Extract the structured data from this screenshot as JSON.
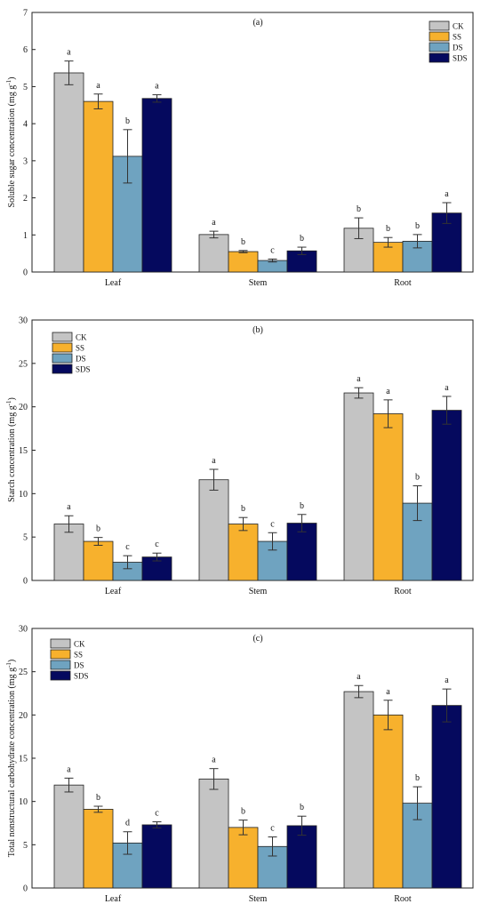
{
  "chart_data": [
    {
      "type": "bar",
      "panel": "(a)",
      "ylabel_parts": [
        "Soluble sugar concentration (mg g",
        "-1",
        ")"
      ],
      "ylim": [
        0,
        7
      ],
      "yticks": [
        0,
        1,
        2,
        3,
        4,
        5,
        6,
        7
      ],
      "categories": [
        "Leaf",
        "Stem",
        "Root"
      ],
      "legend_position": "top-right",
      "series": [
        {
          "name": "CK",
          "values": [
            5.37,
            1.01,
            1.18
          ],
          "errors": [
            0.32,
            0.09,
            0.28
          ],
          "letters": [
            "a",
            "a",
            "b"
          ]
        },
        {
          "name": "SS",
          "values": [
            4.6,
            0.55,
            0.8
          ],
          "errors": [
            0.2,
            0.03,
            0.13
          ],
          "letters": [
            "a",
            "b",
            "b"
          ]
        },
        {
          "name": "DS",
          "values": [
            3.12,
            0.31,
            0.83
          ],
          "errors": [
            0.72,
            0.04,
            0.18
          ],
          "letters": [
            "b",
            "c",
            "b"
          ]
        },
        {
          "name": "SDS",
          "values": [
            4.68,
            0.57,
            1.59
          ],
          "errors": [
            0.1,
            0.1,
            0.28
          ],
          "letters": [
            "a",
            "b",
            "a"
          ]
        }
      ]
    },
    {
      "type": "bar",
      "panel": "(b)",
      "ylabel_parts": [
        "Starch  concentration (mg g",
        "-1",
        ")"
      ],
      "ylim": [
        0,
        30
      ],
      "yticks": [
        0,
        5,
        10,
        15,
        20,
        25,
        30
      ],
      "categories": [
        "Leaf",
        "Stem",
        "Root"
      ],
      "legend_position": "top-left",
      "series": [
        {
          "name": "CK",
          "values": [
            6.5,
            11.6,
            21.6
          ],
          "errors": [
            0.95,
            1.2,
            0.6
          ],
          "letters": [
            "a",
            "a",
            "a"
          ]
        },
        {
          "name": "SS",
          "values": [
            4.5,
            6.5,
            19.2
          ],
          "errors": [
            0.45,
            0.75,
            1.6
          ],
          "letters": [
            "b",
            "b",
            "a"
          ]
        },
        {
          "name": "DS",
          "values": [
            2.1,
            4.5,
            8.9
          ],
          "errors": [
            0.75,
            1.0,
            2.0
          ],
          "letters": [
            "c",
            "c",
            "b"
          ]
        },
        {
          "name": "SDS",
          "values": [
            2.7,
            6.6,
            19.6
          ],
          "errors": [
            0.45,
            1.0,
            1.6
          ],
          "letters": [
            "c",
            "b",
            "a"
          ]
        }
      ]
    },
    {
      "type": "bar",
      "panel": "(c)",
      "ylabel_parts": [
        "Total nonstructural carbohydrate  concentration (mg g",
        "-1",
        ")"
      ],
      "ylim": [
        0,
        30
      ],
      "yticks": [
        0,
        5,
        10,
        15,
        20,
        25,
        30
      ],
      "categories": [
        "Leaf",
        "Stem",
        "Root"
      ],
      "legend_position": "top-left",
      "series": [
        {
          "name": "CK",
          "values": [
            11.9,
            12.6,
            22.7
          ],
          "errors": [
            0.8,
            1.2,
            0.7
          ],
          "letters": [
            "a",
            "a",
            "a"
          ]
        },
        {
          "name": "SS",
          "values": [
            9.1,
            7.0,
            20.0
          ],
          "errors": [
            0.35,
            0.85,
            1.7
          ],
          "letters": [
            "b",
            "b",
            "a"
          ]
        },
        {
          "name": "DS",
          "values": [
            5.2,
            4.8,
            9.8
          ],
          "errors": [
            1.3,
            1.1,
            1.9
          ],
          "letters": [
            "d",
            "c",
            "b"
          ]
        },
        {
          "name": "SDS",
          "values": [
            7.3,
            7.2,
            21.1
          ],
          "errors": [
            0.35,
            1.1,
            1.9
          ],
          "letters": [
            "c",
            "b",
            "a"
          ]
        }
      ]
    }
  ],
  "colors": {
    "CK": "#c4c4c4",
    "SS": "#f7b12d",
    "DS": "#6fa3c0",
    "SDS": "#05095e"
  }
}
